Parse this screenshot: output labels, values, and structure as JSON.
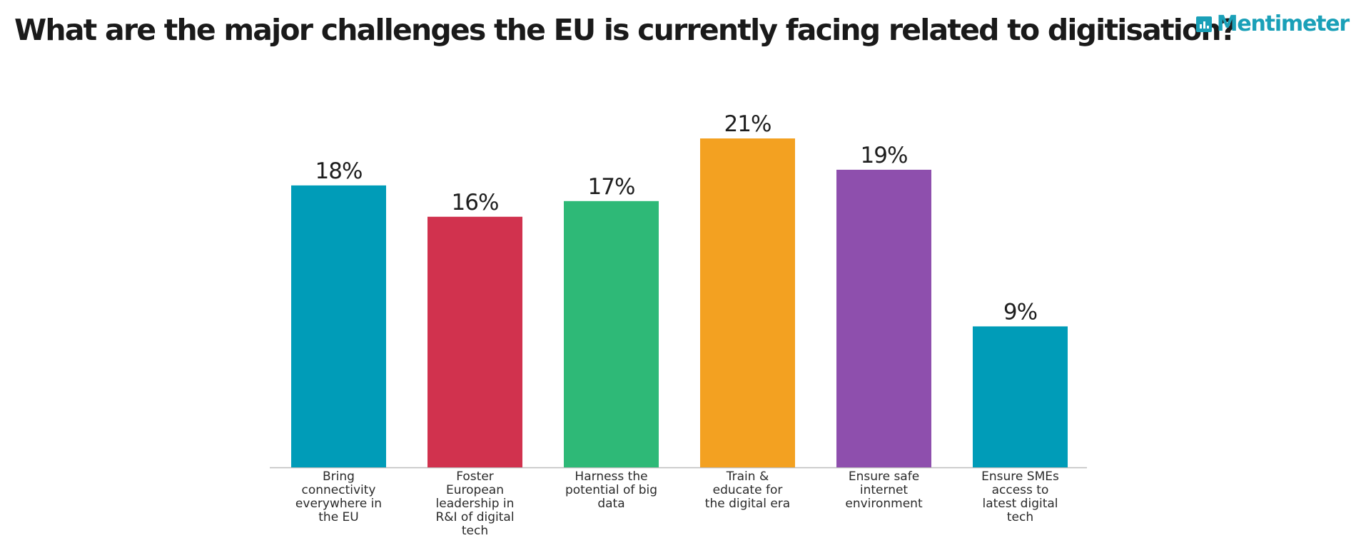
{
  "header": {
    "title": "What are the major challenges the EU is currently facing related to digitisation?",
    "brand": "Mentimeter",
    "brand_icon": "bar-chart-icon"
  },
  "colors": {
    "brand": "#1aa0b8",
    "axis": "#bdbdbd"
  },
  "chart_data": {
    "type": "bar",
    "title": "What are the major challenges the EU is currently facing related to digitisation?",
    "categories": [
      "Bring connectivity everywhere in the EU",
      "Foster European leadership in R&I of digital tech",
      "Harness the potential of big data",
      "Train & educate for the digital era",
      "Ensure safe internet environment",
      "Ensure SMEs access to latest digital tech"
    ],
    "category_lines": [
      [
        "Bring",
        "connectivity",
        "everywhere in",
        "the EU"
      ],
      [
        "Foster",
        "European",
        "leadership in",
        "R&I of digital",
        "tech"
      ],
      [
        "Harness the",
        "potential of big",
        "data"
      ],
      [
        "Train &",
        "educate for",
        "the digital era"
      ],
      [
        "Ensure safe",
        "internet",
        "environment"
      ],
      [
        "Ensure SMEs",
        "access to",
        "latest digital",
        "tech"
      ]
    ],
    "values": [
      18,
      16,
      17,
      21,
      19,
      9
    ],
    "value_labels": [
      "18%",
      "16%",
      "17%",
      "21%",
      "19%",
      "9%"
    ],
    "colors": [
      "#009cb8",
      "#d1324e",
      "#2eb977",
      "#f3a121",
      "#8e4fad",
      "#009cb8"
    ],
    "unit": "%",
    "ylim": [
      0,
      21
    ],
    "xlabel": "",
    "ylabel": "",
    "grid": false,
    "legend": "none"
  }
}
